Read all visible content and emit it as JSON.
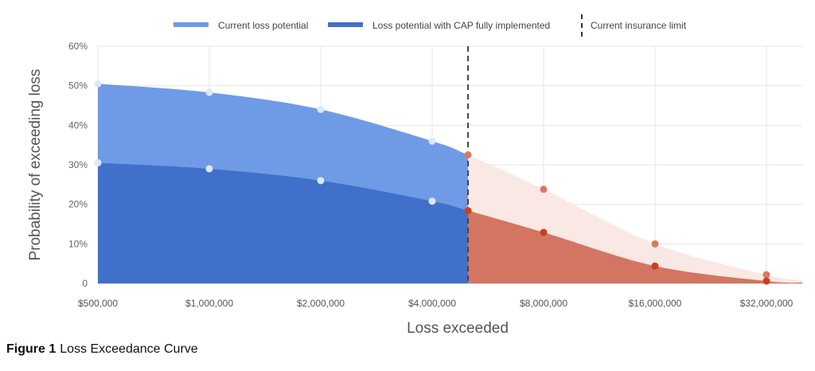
{
  "chart_data": {
    "type": "area",
    "title": "",
    "xlabel": "Loss exceeded",
    "ylabel": "Probability of exceeding loss",
    "x_scale": "log2",
    "x": [
      500000,
      1000000,
      2000000,
      4000000,
      5000000,
      8000000,
      16000000,
      32000000
    ],
    "xlim": [
      500000,
      40000000
    ],
    "x_tick_values": [
      500000,
      1000000,
      2000000,
      4000000,
      8000000,
      16000000,
      32000000
    ],
    "x_tick_labels": [
      "$500,000",
      "$1,000,000",
      "$2,000,000",
      "$4,000,000",
      "$8,000,000",
      "$16,000,000",
      "$32,000,000"
    ],
    "ylim": [
      0,
      60
    ],
    "y_tick_values": [
      0,
      10,
      20,
      30,
      40,
      50,
      60
    ],
    "y_tick_labels": [
      "0",
      "10%",
      "20%",
      "30%",
      "40%",
      "50%",
      "60%"
    ],
    "grid": true,
    "legend_position": "top",
    "series": [
      {
        "name": "Current loss potential",
        "values": [
          50.5,
          48.3,
          44,
          36,
          32.5,
          23.8,
          10,
          2.2
        ],
        "color": "#6f9be6",
        "over_limit_color": "#f9e8e3",
        "dot_color": "#dce8fb",
        "over_limit_dot_color": "#d77a63"
      },
      {
        "name": "Loss potential with CAP fully implemented",
        "values": [
          30.5,
          29,
          26,
          20.8,
          18.4,
          12.9,
          4.4,
          0.6
        ],
        "color": "#4170ca",
        "over_limit_color": "#d37562",
        "dot_color": "#dce8fb",
        "over_limit_dot_color": "#c8401f"
      }
    ],
    "reference_line": {
      "name": "Current insurance limit",
      "x": 5000000,
      "style": "dashed",
      "color": "#444444"
    }
  },
  "caption": {
    "label": "Figure 1",
    "text": "Loss Exceedance Curve"
  }
}
